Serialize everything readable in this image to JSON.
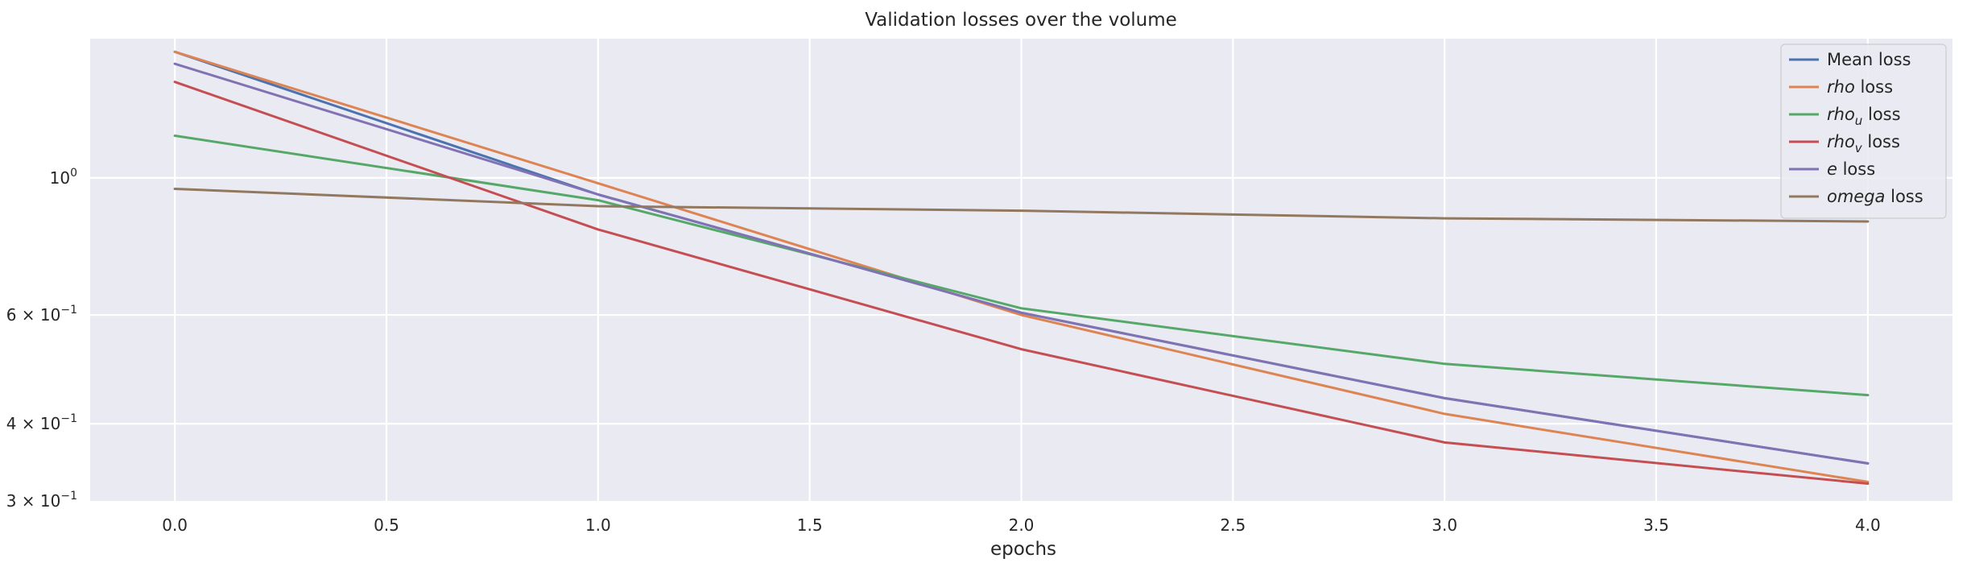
{
  "chart_data": {
    "type": "line",
    "title": "Validation losses over the volume",
    "xlabel": "epochs",
    "ylabel": "",
    "xlim": [
      -0.2,
      4.2
    ],
    "ylim": [
      0.3,
      1.68
    ],
    "yscale": "log",
    "grid": true,
    "legend_position": "top-right",
    "x": [
      0,
      1,
      2,
      3,
      4
    ],
    "x_tick_values": [
      0,
      0.5,
      1,
      1.5,
      2,
      2.5,
      3,
      3.5,
      4
    ],
    "x_ticks": [
      "0.0",
      "0.5",
      "1.0",
      "1.5",
      "2.0",
      "2.5",
      "3.0",
      "3.5",
      "4.0"
    ],
    "y_ticks": [
      {
        "value": 1.0,
        "base": "10",
        "exp": "0"
      },
      {
        "value": 0.6,
        "base": "6 × 10",
        "exp": "−1"
      },
      {
        "value": 0.4,
        "base": "4 × 10",
        "exp": "−1"
      },
      {
        "value": 0.3,
        "base": "3 × 10",
        "exp": "−1"
      }
    ],
    "series": [
      {
        "name": "Mean loss",
        "legend_main": "Mean",
        "legend_sub": "",
        "legend_suffix": " loss",
        "italic": false,
        "color": "#4c72b0",
        "values": [
          1.6,
          0.94,
          0.605,
          0.44,
          0.345
        ]
      },
      {
        "name": "rho loss",
        "legend_main": "rho",
        "legend_sub": "",
        "legend_suffix": " loss",
        "italic": true,
        "color": "#dd8452",
        "values": [
          1.6,
          0.98,
          0.6,
          0.415,
          0.322
        ]
      },
      {
        "name": "rho_u loss",
        "legend_main": "rho",
        "legend_sub": "u",
        "legend_suffix": " loss",
        "italic": true,
        "color": "#55a868",
        "values": [
          1.17,
          0.92,
          0.615,
          0.5,
          0.445
        ]
      },
      {
        "name": "rho_v loss",
        "legend_main": "rho",
        "legend_sub": "v",
        "legend_suffix": " loss",
        "italic": true,
        "color": "#c44e52",
        "values": [
          1.43,
          0.825,
          0.528,
          0.373,
          0.32
        ]
      },
      {
        "name": "e loss",
        "legend_main": "e",
        "legend_sub": "",
        "legend_suffix": " loss",
        "italic": true,
        "color": "#8172b3",
        "values": [
          1.53,
          0.94,
          0.605,
          0.44,
          0.345
        ]
      },
      {
        "name": "omega loss",
        "legend_main": "omega",
        "legend_sub": "",
        "legend_suffix": " loss",
        "italic": true,
        "color": "#937860",
        "values": [
          0.96,
          0.9,
          0.885,
          0.86,
          0.85
        ]
      }
    ]
  }
}
